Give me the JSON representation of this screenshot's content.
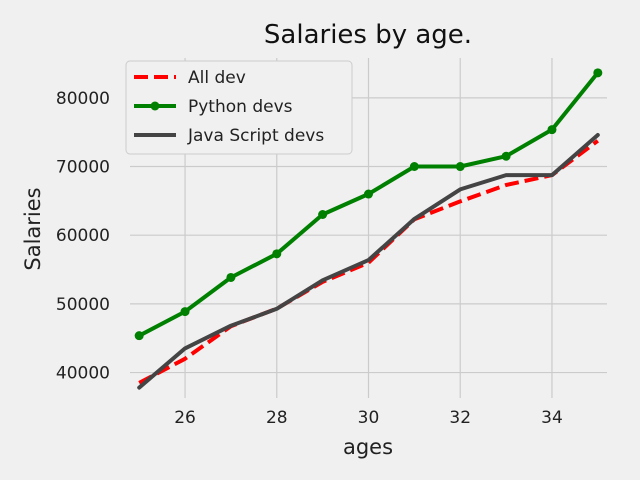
{
  "chart_data": {
    "type": "line",
    "title": "Salaries by age.",
    "xlabel": "ages",
    "ylabel": "Salaries",
    "x": [
      25,
      26,
      27,
      28,
      29,
      30,
      31,
      32,
      33,
      34,
      35
    ],
    "xlim": [
      24.8,
      35.2
    ],
    "ylim": [
      36300,
      85800
    ],
    "xticks": [
      26,
      28,
      30,
      32,
      34
    ],
    "yticks": [
      40000,
      50000,
      60000,
      70000,
      80000
    ],
    "grid": true,
    "legend_position": "top-left",
    "series": [
      {
        "name": "All dev",
        "color": "#ff0000",
        "style": "dashed",
        "values": [
          38496,
          42000,
          46752,
          49320,
          53200,
          56000,
          62316,
          64928,
          67317,
          68748,
          73752
        ]
      },
      {
        "name": "Python devs",
        "color": "#008000",
        "style": "solid-markers",
        "values": [
          45372,
          48876,
          53850,
          57287,
          63016,
          65998,
          70003,
          70000,
          71496,
          75370,
          83640
        ]
      },
      {
        "name": "Java Script devs",
        "color": "#444444",
        "style": "solid",
        "values": [
          37810,
          43515,
          46823,
          49293,
          53437,
          56373,
          62375,
          66674,
          68745,
          68746,
          74583
        ]
      }
    ]
  }
}
